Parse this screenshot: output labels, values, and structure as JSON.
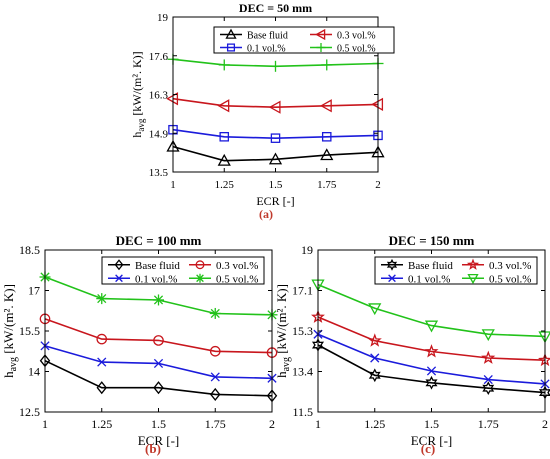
{
  "chart_data": [
    {
      "type": "line",
      "panel_label": "(a)",
      "title": "DEC = 50 mm",
      "xlabel": "ECR [-]",
      "ylabel_main": "h",
      "ylabel_sub": "avg",
      "ylabel_unit": "[kW/(m². K)]",
      "x": [
        1,
        1.25,
        1.5,
        1.75,
        2
      ],
      "x_ticks": [
        "1",
        "1.25",
        "1.5",
        "1.75",
        "2"
      ],
      "y_ticks": [
        "13.5",
        "14.9",
        "16.3",
        "17.6",
        "19"
      ],
      "ylim": [
        13.5,
        19
      ],
      "grid": false,
      "legend_position": "top",
      "series": [
        {
          "name": "Base fluid",
          "color": "#000000",
          "marker": "triangle-up",
          "values": [
            14.4,
            13.9,
            13.95,
            14.1,
            14.2
          ]
        },
        {
          "name": "0.3 vol.%",
          "color": "#c8161d",
          "marker": "triangle-left",
          "values": [
            16.1,
            15.85,
            15.8,
            15.85,
            15.9
          ]
        },
        {
          "name": "0.1 vol.%",
          "color": "#1b1bdb",
          "marker": "square",
          "values": [
            15.0,
            14.75,
            14.7,
            14.75,
            14.8
          ]
        },
        {
          "name": "0.5 vol.%",
          "color": "#22c21a",
          "marker": "plus",
          "values": [
            17.5,
            17.3,
            17.25,
            17.3,
            17.35
          ]
        }
      ]
    },
    {
      "type": "line",
      "panel_label": "(b)",
      "title": "DEC = 100 mm",
      "xlabel": "ECR [-]",
      "ylabel_main": "h",
      "ylabel_sub": "avg",
      "ylabel_unit": "[kW/(m². K)]",
      "x": [
        1,
        1.25,
        1.5,
        1.75,
        2
      ],
      "x_ticks": [
        "1",
        "1.25",
        "1.5",
        "1.75",
        "2"
      ],
      "y_ticks": [
        "12.5",
        "14",
        "15.5",
        "17",
        "18.5"
      ],
      "ylim": [
        12.5,
        18.5
      ],
      "grid": false,
      "legend_position": "top",
      "series": [
        {
          "name": "Base fluid",
          "color": "#000000",
          "marker": "diamond",
          "values": [
            14.4,
            13.4,
            13.4,
            13.15,
            13.1
          ]
        },
        {
          "name": "0.3 vol.%",
          "color": "#c8161d",
          "marker": "circle",
          "values": [
            15.95,
            15.2,
            15.15,
            14.75,
            14.7
          ]
        },
        {
          "name": "0.1 vol.%",
          "color": "#1b1bdb",
          "marker": "x",
          "values": [
            14.95,
            14.35,
            14.3,
            13.8,
            13.75
          ]
        },
        {
          "name": "0.5 vol.%",
          "color": "#22c21a",
          "marker": "asterisk",
          "values": [
            17.5,
            16.7,
            16.65,
            16.15,
            16.1
          ]
        }
      ]
    },
    {
      "type": "line",
      "panel_label": "(c)",
      "title": "DEC = 150 mm",
      "xlabel": "ECR [-]",
      "ylabel_main": "h",
      "ylabel_sub": "avg",
      "ylabel_unit": "[kW/(m². K)]",
      "x": [
        1,
        1.25,
        1.5,
        1.75,
        2
      ],
      "x_ticks": [
        "1",
        "1.25",
        "1.5",
        "1.75",
        "2"
      ],
      "y_ticks": [
        "11.5",
        "13.4",
        "15.3",
        "17.1",
        "19"
      ],
      "ylim": [
        11.5,
        19
      ],
      "grid": false,
      "legend_position": "top",
      "series": [
        {
          "name": "Base fluid",
          "color": "#000000",
          "marker": "hexagram",
          "values": [
            14.6,
            13.2,
            12.85,
            12.6,
            12.4
          ]
        },
        {
          "name": "0.3 vol.%",
          "color": "#c8161d",
          "marker": "pentagram",
          "values": [
            15.9,
            14.8,
            14.3,
            14.0,
            13.9
          ]
        },
        {
          "name": "0.1 vol.%",
          "color": "#1b1bdb",
          "marker": "x",
          "values": [
            15.1,
            14.0,
            13.4,
            13.0,
            12.8
          ]
        },
        {
          "name": "0.5 vol.%",
          "color": "#22c21a",
          "marker": "triangle-down",
          "values": [
            17.4,
            16.3,
            15.5,
            15.1,
            15.0
          ]
        }
      ]
    }
  ]
}
